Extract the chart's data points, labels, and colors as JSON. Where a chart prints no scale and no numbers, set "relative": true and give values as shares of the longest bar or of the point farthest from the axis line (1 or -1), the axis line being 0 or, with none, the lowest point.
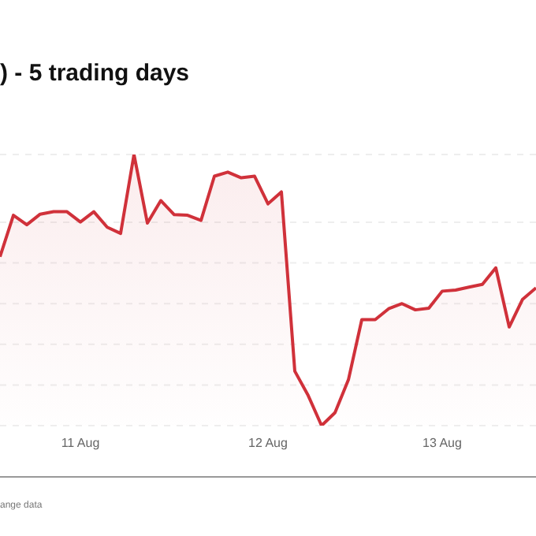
{
  "chart_data": {
    "type": "area",
    "title": ") - 5 trading days",
    "relative": true,
    "grid": "y",
    "annotations": [
      "ange data"
    ],
    "categories": [
      null,
      null,
      null,
      null,
      null,
      null,
      "11 Aug",
      null,
      null,
      null,
      null,
      null,
      null,
      null,
      null,
      null,
      null,
      null,
      null,
      null,
      "12 Aug",
      null,
      null,
      null,
      null,
      null,
      null,
      null,
      null,
      null,
      null,
      null,
      null,
      "13 Aug",
      null,
      null,
      null,
      null,
      null,
      null,
      null
    ],
    "series": [
      {
        "color": "#d0313a",
        "values": [
          0.623,
          0.776,
          0.741,
          0.78,
          0.789,
          0.789,
          0.751,
          0.789,
          0.732,
          0.709,
          1,
          0.747,
          0.83,
          0.778,
          0.776,
          0.757,
          0.92,
          0.935,
          0.914,
          0.92,
          0.818,
          0.862,
          0.201,
          0.111,
          0,
          0.048,
          0.169,
          0.391,
          0.391,
          0.431,
          0.45,
          0.427,
          0.433,
          0.496,
          0.5,
          0.511,
          0.521,
          0.582,
          0.364,
          0.466,
          0.508
        ]
      }
    ]
  }
}
